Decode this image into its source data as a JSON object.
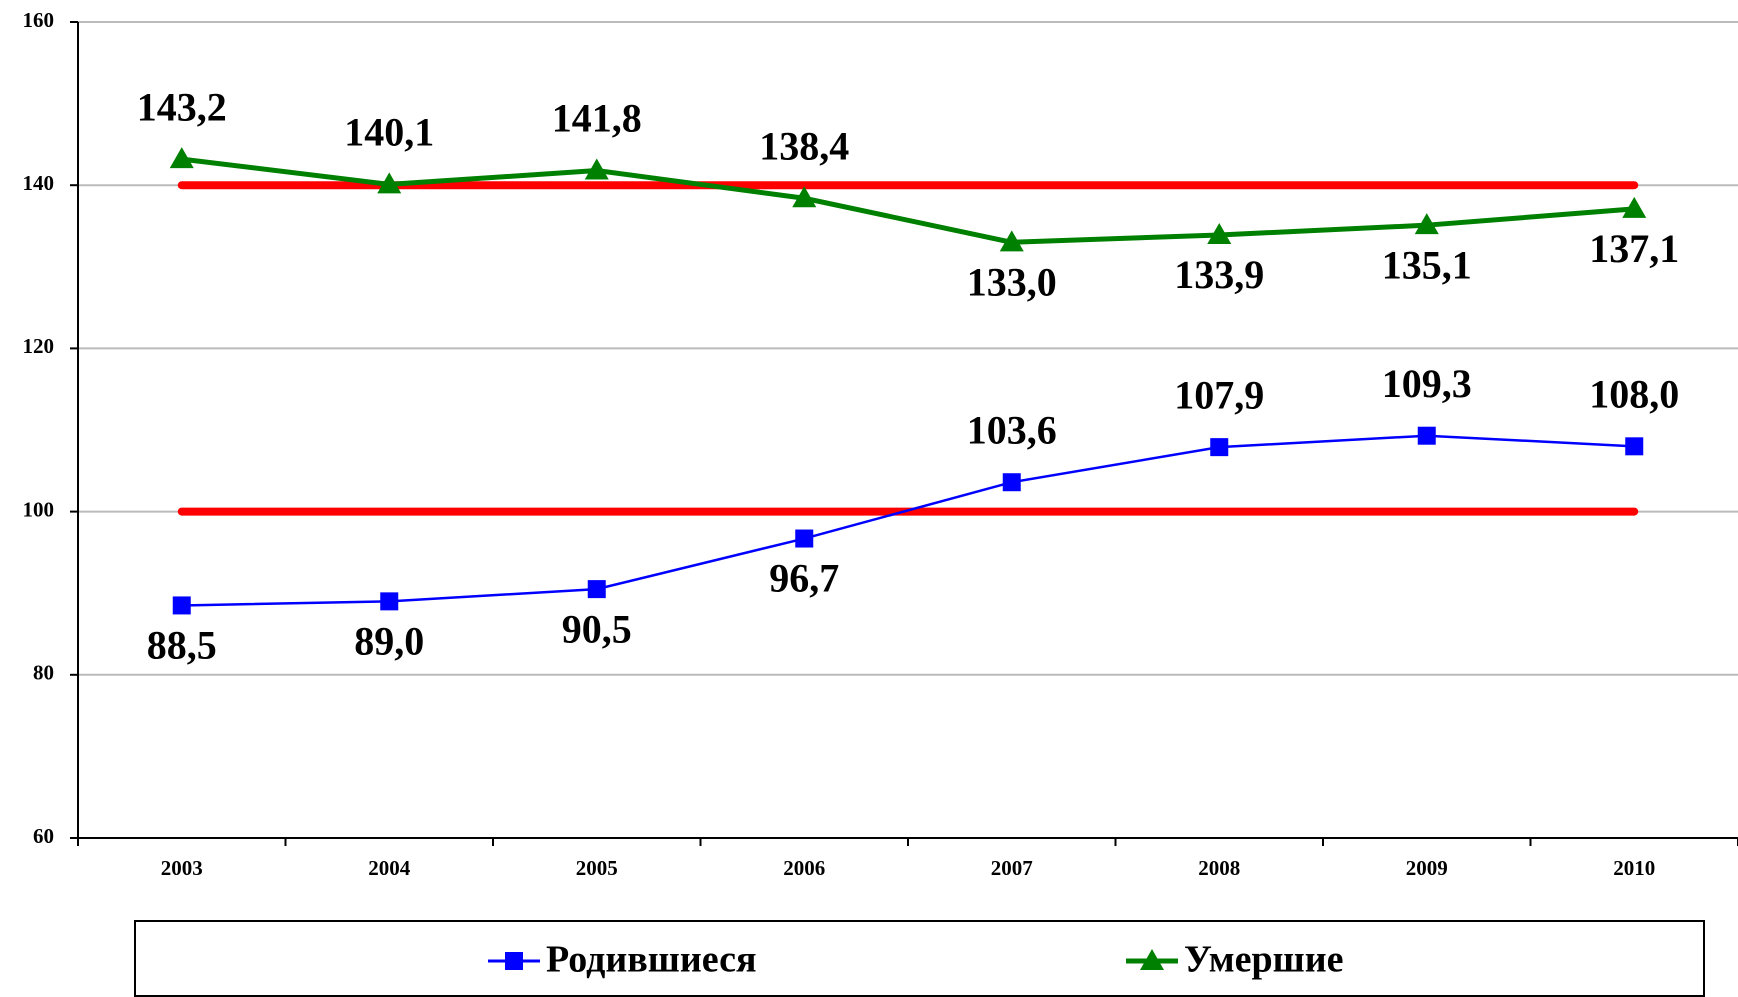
{
  "chart_data": {
    "type": "line",
    "categories": [
      "2003",
      "2004",
      "2005",
      "2006",
      "2007",
      "2008",
      "2009",
      "2010"
    ],
    "series": [
      {
        "name": "Родившиеся",
        "color": "#0000ff",
        "marker": "square",
        "values": [
          88.5,
          89.0,
          90.5,
          96.7,
          103.6,
          107.9,
          109.3,
          108.0
        ],
        "value_labels": [
          "88,5",
          "89,0",
          "90,5",
          "96,7",
          "103,6",
          "107,9",
          "109,3",
          "108,0"
        ]
      },
      {
        "name": "Умершие",
        "color": "#008000",
        "marker": "triangle",
        "values": [
          143.2,
          140.1,
          141.8,
          138.4,
          133.0,
          133.9,
          135.1,
          137.1
        ],
        "value_labels": [
          "143,2",
          "140,1",
          "141,8",
          "138,4",
          "133,0",
          "133,9",
          "135,1",
          "137,1"
        ]
      }
    ],
    "reference_lines": [
      140,
      100
    ],
    "reference_color": "#ff0000",
    "ylim": [
      60,
      160
    ],
    "yticks": [
      60,
      80,
      100,
      120,
      140,
      160
    ],
    "grid": true,
    "legend": "bottom"
  }
}
